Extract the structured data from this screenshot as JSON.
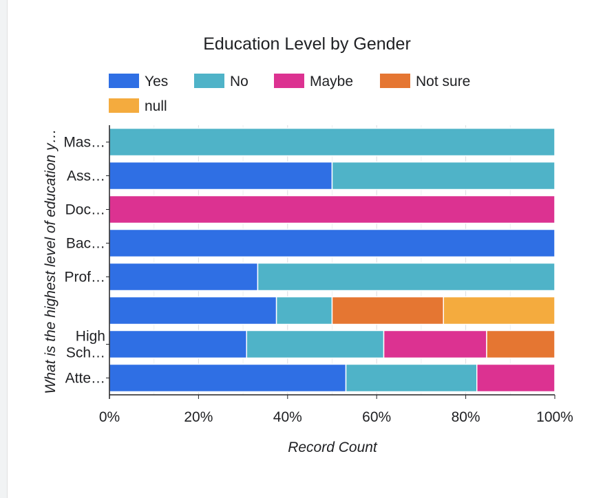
{
  "chart_data": {
    "type": "bar",
    "orientation": "horizontal",
    "stacked": "percent",
    "title": "Education Level by Gender",
    "xlabel": "Record Count",
    "ylabel": "What is the highest level of education y…",
    "xlim": [
      0,
      100
    ],
    "x_ticks": [
      "0%",
      "20%",
      "40%",
      "60%",
      "80%",
      "100%"
    ],
    "grid": "vertical",
    "legend_position": "top",
    "categories": [
      "Mas…",
      "Ass…",
      "Doc…",
      "Bac…",
      "Prof…",
      "",
      "High Sch…",
      "Atte…"
    ],
    "series": [
      {
        "name": "Yes",
        "color": "#2f6fe4",
        "values": [
          0,
          50,
          0,
          100,
          33.3,
          37.5,
          30.8,
          53.1
        ]
      },
      {
        "name": "No",
        "color": "#4fb3c8",
        "values": [
          100,
          50,
          0,
          0,
          66.7,
          12.5,
          30.8,
          29.4
        ]
      },
      {
        "name": "Maybe",
        "color": "#dc3291",
        "values": [
          0,
          0,
          100,
          0,
          0,
          0,
          23.1,
          17.5
        ]
      },
      {
        "name": "Not sure",
        "color": "#e57632",
        "values": [
          0,
          0,
          0,
          0,
          0,
          25,
          15.3,
          0
        ]
      },
      {
        "name": "null",
        "color": "#f4ab3e",
        "values": [
          0,
          0,
          0,
          0,
          0,
          25,
          0,
          0
        ]
      }
    ]
  }
}
